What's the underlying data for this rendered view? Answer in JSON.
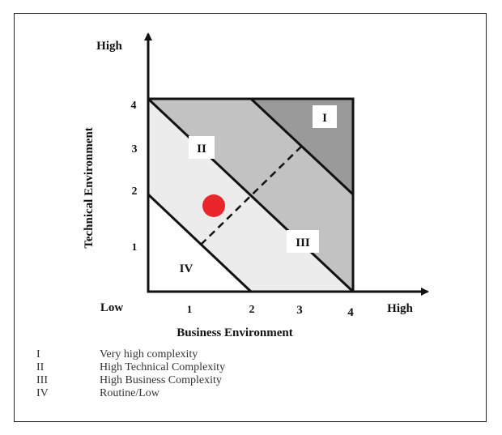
{
  "diagram": {
    "y_axis_high": "High",
    "y_axis_title": "Technical Environment",
    "y_ticks": [
      "4",
      "3",
      "2",
      "1"
    ],
    "x_axis_low": "Low",
    "x_axis_high": "High",
    "x_axis_title": "Business Environment",
    "x_ticks": [
      "1",
      "2",
      "3",
      "4"
    ],
    "zone_labels": [
      "I",
      "II",
      "III",
      "IV"
    ],
    "colors": {
      "zone_i": "#9a9a9a",
      "zone_ii_iii": "#c2c2c2",
      "zone_middle": "#ececec",
      "zone_iv": "#ffffff",
      "marker": "#e8262b",
      "line": "#111111"
    }
  },
  "legend": [
    {
      "num": "I",
      "text": "Very high complexity"
    },
    {
      "num": "II",
      "text": "High Technical Complexity"
    },
    {
      "num": "III",
      "text": "High Business Complexity"
    },
    {
      "num": "IV",
      "text": "Routine/Low"
    }
  ]
}
